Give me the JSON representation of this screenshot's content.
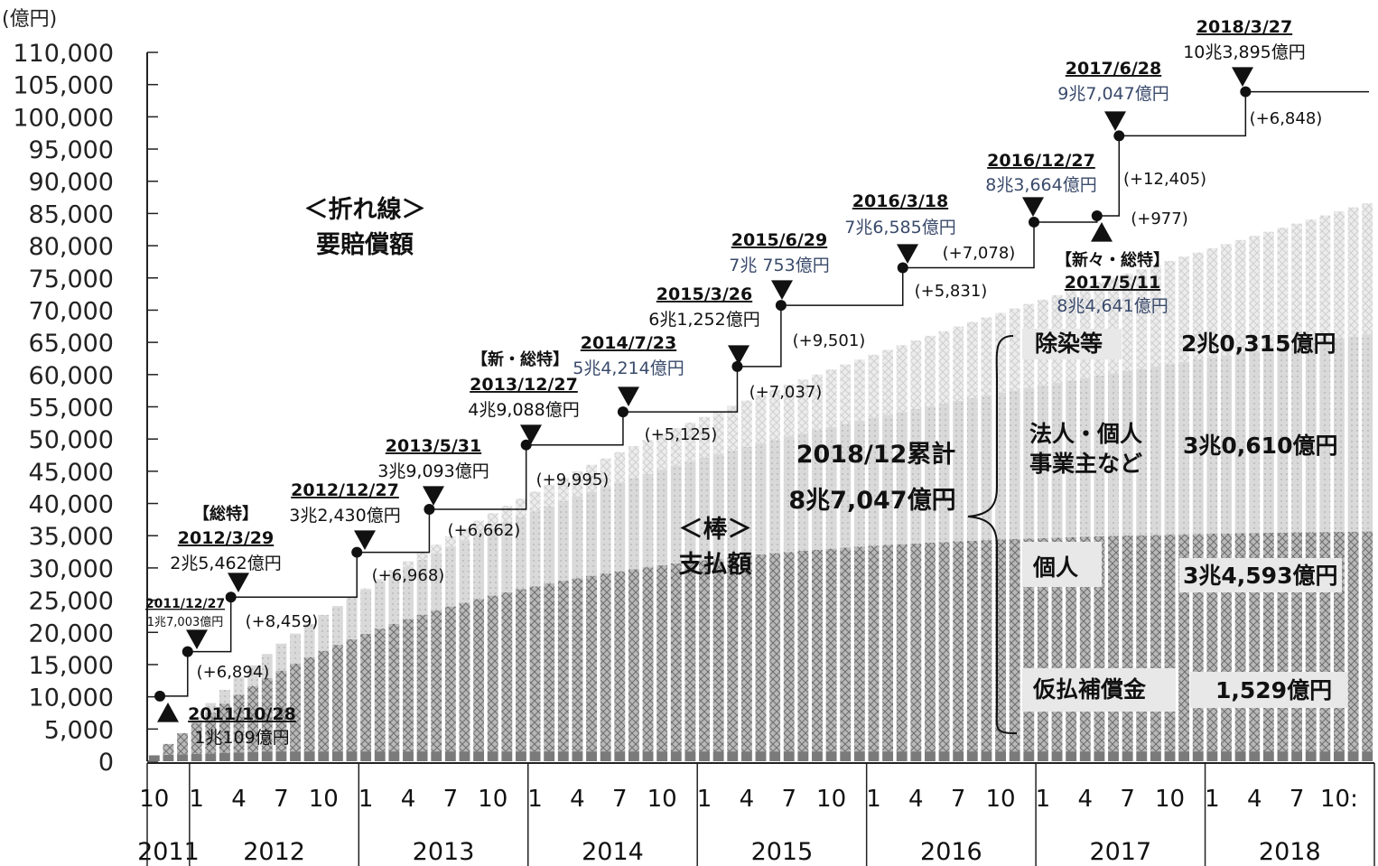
{
  "chart_data": {
    "type": "bar+step-line",
    "unit_label": "(億円)",
    "ylim": [
      0,
      110000
    ],
    "y_ticks": [
      "0",
      "5,000",
      "10,000",
      "15,000",
      "20,000",
      "25,000",
      "30,000",
      "35,000",
      "40,000",
      "45,000",
      "50,000",
      "55,000",
      "60,000",
      "65,000",
      "70,000",
      "75,000",
      "80,000",
      "85,000",
      "90,000",
      "95,000",
      "100,000",
      "105,000",
      "110,000"
    ],
    "x_month_labels": [
      [
        "10"
      ],
      [
        "1",
        "4",
        "7",
        "10"
      ],
      [
        "1",
        "4",
        "7",
        "10"
      ],
      [
        "1",
        "4",
        "7",
        "10"
      ],
      [
        "1",
        "4",
        "7",
        "10"
      ],
      [
        "1",
        "4",
        "7",
        "10"
      ],
      [
        "1",
        "4",
        "7",
        "10"
      ],
      [
        "1",
        "4",
        "7",
        "10:"
      ]
    ],
    "x_years": [
      "2011",
      "2012",
      "2013",
      "2014",
      "2015",
      "2016",
      "2017",
      "2018"
    ],
    "line_title": [
      "＜折れ線＞",
      "要賠償額"
    ],
    "bar_title": [
      "＜棒＞",
      "支払額"
    ],
    "line_points": [
      {
        "date": "2011/10/28",
        "value": 10109,
        "amount": "1兆109億円",
        "marker": "up",
        "tag": ""
      },
      {
        "date": "2011/12/27",
        "value": 17003,
        "amount": "1兆7,003億円",
        "marker": "down",
        "tag": "",
        "increment": "(+6,894)"
      },
      {
        "date": "2012/3/29",
        "value": 25462,
        "amount": "2兆5,462億円",
        "marker": "down",
        "tag": "【総特】",
        "increment": "(+8,459)"
      },
      {
        "date": "2012/12/27",
        "value": 32430,
        "amount": "3兆2,430億円",
        "marker": "down",
        "tag": "",
        "increment": "(+6,968)"
      },
      {
        "date": "2013/5/31",
        "value": 39093,
        "amount": "3兆9,093億円",
        "marker": "down",
        "tag": "",
        "increment": "(+6,662)"
      },
      {
        "date": "2013/12/27",
        "value": 49088,
        "amount": "4兆9,088億円",
        "marker": "down",
        "tag": "【新・総特】",
        "increment": "(+9,995)"
      },
      {
        "date": "2014/7/23",
        "value": 54214,
        "amount": "5兆4,214億円",
        "marker": "down",
        "tag": "",
        "increment": "(+5,125)"
      },
      {
        "date": "2015/3/26",
        "value": 61252,
        "amount": "6兆1,252億円",
        "marker": "down",
        "tag": "",
        "increment": "(+7,037)"
      },
      {
        "date": "2015/6/29",
        "value": 70753,
        "amount": "7兆 753億円",
        "marker": "down",
        "tag": "",
        "increment": "(+9,501)"
      },
      {
        "date": "2016/3/18",
        "value": 76585,
        "amount": "7兆6,585億円",
        "marker": "down",
        "tag": "",
        "increment": "(+5,831)"
      },
      {
        "date": "2016/12/27",
        "value": 83664,
        "amount": "8兆3,664億円",
        "marker": "down",
        "tag": "",
        "increment": "(+7,078)"
      },
      {
        "date": "2017/5/11",
        "value": 84641,
        "amount": "8兆4,641億円",
        "marker": "up",
        "tag": "【新々・総特】",
        "increment": "(+977)"
      },
      {
        "date": "2017/6/28",
        "value": 97047,
        "amount": "9兆7,047億円",
        "marker": "down",
        "tag": "",
        "increment": "(+12,405)"
      },
      {
        "date": "2018/3/27",
        "value": 103895,
        "amount": "10兆3,895億円",
        "marker": "down",
        "tag": "",
        "increment": "(+6,848)"
      }
    ],
    "bar_series_note": "monthly cumulative payments, stacked by category",
    "bars_cumulative_total_end": 87047,
    "summary": {
      "label": "2018/12累計",
      "total": "8兆7,047億円",
      "categories": [
        {
          "name": "除染等",
          "value": "2兆0,315億円"
        },
        {
          "name": "法人・個人事業主など",
          "name_lines": [
            "法人・個人",
            "事業主など"
          ],
          "value": "3兆0,610億円"
        },
        {
          "name": "個人",
          "value": "3兆4,593億円"
        },
        {
          "name": "仮払補償金",
          "value": "1,529億円"
        }
      ]
    }
  }
}
